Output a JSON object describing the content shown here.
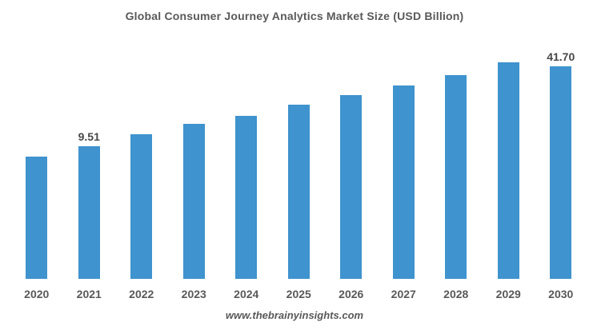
{
  "colors": {
    "background": "#FFFFFF",
    "bar": "#3F93CE",
    "title_text": "#595959",
    "axis_text": "#595959",
    "value_label_text": "#474747"
  },
  "footer": {
    "watermark": "www.thebrainyinsights.com"
  },
  "chart_data": {
    "type": "bar",
    "title": "Global Consumer Journey Analytics Market Size (USD Billion)",
    "xlabel": "",
    "ylabel": "",
    "categories": [
      "2020",
      "2021",
      "2022",
      "2023",
      "2024",
      "2025",
      "2026",
      "2027",
      "2028",
      "2029",
      "2030"
    ],
    "series": [
      {
        "name": "Market Size (USD Billion)",
        "values": [
          null,
          9.51,
          null,
          null,
          null,
          null,
          null,
          null,
          null,
          null,
          41.7
        ]
      }
    ],
    "estimated_values_from_trend": [
      8.07,
      9.51,
      11.21,
      13.21,
      15.57,
      18.35,
      21.62,
      25.48,
      30.03,
      35.4,
      41.7
    ],
    "bar_heights_pct_of_max": [
      53.5,
      58.0,
      63.4,
      67.8,
      71.4,
      76.1,
      80.3,
      84.7,
      89.2,
      94.7,
      100.0
    ],
    "data_labels": [
      {
        "category": "2021",
        "text": "9.51"
      },
      {
        "category": "2030",
        "text": "41.70"
      }
    ],
    "grid": false,
    "legend": false,
    "y_axis_visible": false,
    "x_axis_line_visible": false
  }
}
